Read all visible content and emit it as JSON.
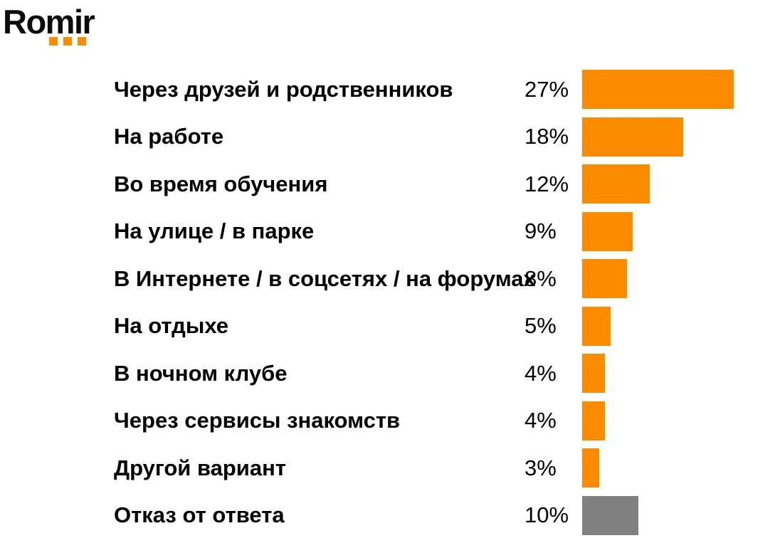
{
  "logo": {
    "text": "Romir",
    "dot_count": 3
  },
  "palette": {
    "orange": "#FB8C00",
    "gray": "#808080",
    "text": "#000000",
    "logo_text": "#0B0B0B"
  },
  "chart_data": {
    "type": "bar",
    "orientation": "horizontal",
    "unit": "%",
    "grid": false,
    "legend": false,
    "xlim": [
      0,
      28
    ],
    "categories": [
      "Через друзей и родственников",
      "На работе",
      "Во время обучения",
      "На улице / в парке",
      "В Интернете / в соцсетях / на форумах",
      "На отдыхе",
      "В ночном клубе",
      "Через сервисы знакомств",
      "Другой вариант",
      "Отказ от ответа"
    ],
    "values": [
      27,
      18,
      12,
      9,
      8,
      5,
      4,
      4,
      3,
      10
    ],
    "value_labels": [
      "27%",
      "18%",
      "12%",
      "9%",
      "8%",
      "5%",
      "4%",
      "4%",
      "3%",
      "10%"
    ],
    "bar_colors": [
      "orange",
      "orange",
      "orange",
      "orange",
      "orange",
      "orange",
      "orange",
      "orange",
      "orange",
      "gray"
    ]
  }
}
